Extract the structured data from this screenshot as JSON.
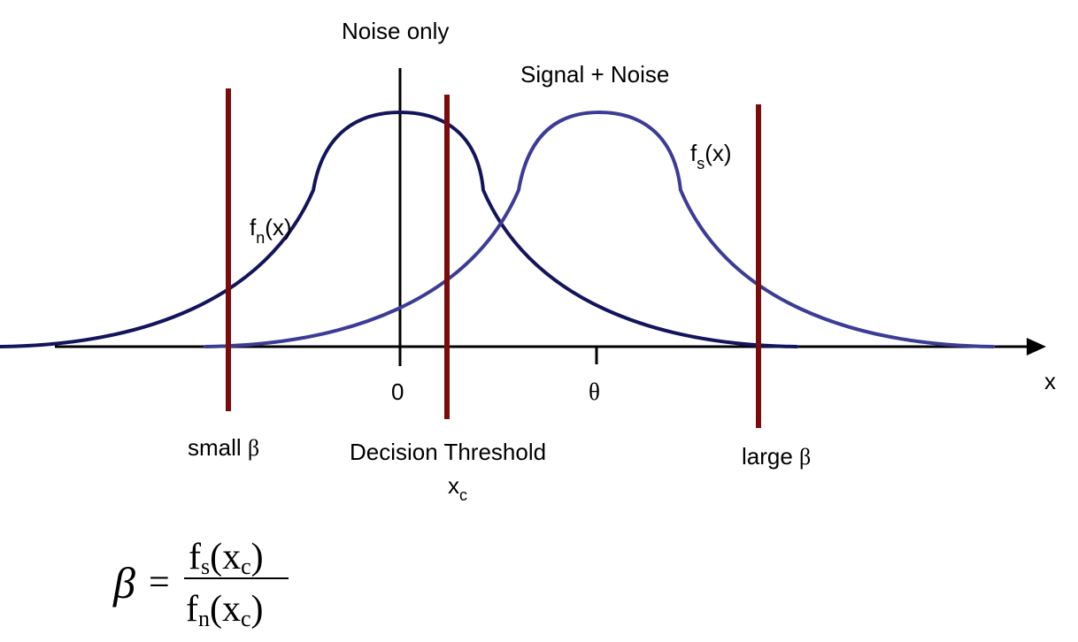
{
  "labels": {
    "noise_only": "Noise only",
    "signal_plus_noise": "Signal + Noise",
    "fn_f": "f",
    "fn_sub": "n",
    "fn_arg": "(x)",
    "fs_f": "f",
    "fs_sub": "s",
    "fs_arg": "(x)",
    "x_axis": "x",
    "tick_zero": "0",
    "tick_theta": "θ",
    "small_beta_text": "small ",
    "beta_symbol": "β",
    "large_beta_text": "large ",
    "decision_threshold": "Decision Threshold",
    "xc_main": "x",
    "xc_sub": "c"
  },
  "formula": {
    "lhs": "β",
    "equals": "=",
    "num_f": "f",
    "num_sub": "s",
    "num_open": "(x",
    "num_xsub": "c",
    "num_close": ")",
    "den_f": "f",
    "den_sub": "n",
    "den_open": "(x",
    "den_xsub": "c",
    "den_close": ")"
  },
  "colors": {
    "noise_curve": "#14145c",
    "signal_curve": "#3c3c96",
    "threshold_lines": "#7a0c0c",
    "axes": "#000000"
  }
}
